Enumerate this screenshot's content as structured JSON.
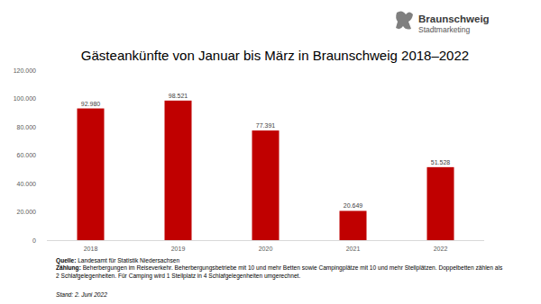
{
  "chart_data": {
    "type": "bar",
    "title": "Gästeankünfte von Januar bis März in Braunschweig 2018–2022",
    "categories": [
      "2018",
      "2019",
      "2020",
      "2021",
      "2022"
    ],
    "values": [
      92980,
      98521,
      77391,
      20649,
      51528
    ],
    "value_labels": [
      "92.980",
      "98.521",
      "77.391",
      "20.649",
      "51.528"
    ],
    "data_labels": true,
    "color": "#c00000",
    "ylim": [
      0,
      120000
    ],
    "yticks": [
      0,
      {
        "value": 20000,
        "label": "20.000"
      },
      {
        "value": 40000,
        "label": "40.000"
      },
      {
        "value": 60000,
        "label": "60.000"
      },
      {
        "value": 80000,
        "label": "80.000"
      },
      {
        "value": 100000,
        "label": "100.000"
      },
      {
        "value": 120000,
        "label": "120.000"
      }
    ],
    "grid": false,
    "annotations": [
      {
        "label": "Quelle:",
        "text": "Landesamt für Statistik Niedersachsen"
      },
      {
        "label": "Zählung:",
        "text": "Beherbergungen im Reiseverkehr. Beherbergungsbetriebe mit 10 und mehr Betten sowie Campingplätze mit 10 und mehr Stellplätzen. Doppelbetten zählen als 2 Schlafgelegenheiten. Für Camping wird 1 Stellplatz in 4 Schlafgelegenheiten umgerechnet."
      },
      {
        "text": "Stand: 2. Juni 2022"
      }
    ]
  },
  "logo": {
    "title": "Braunschweig",
    "subtitle": "Stadtmarketing"
  }
}
